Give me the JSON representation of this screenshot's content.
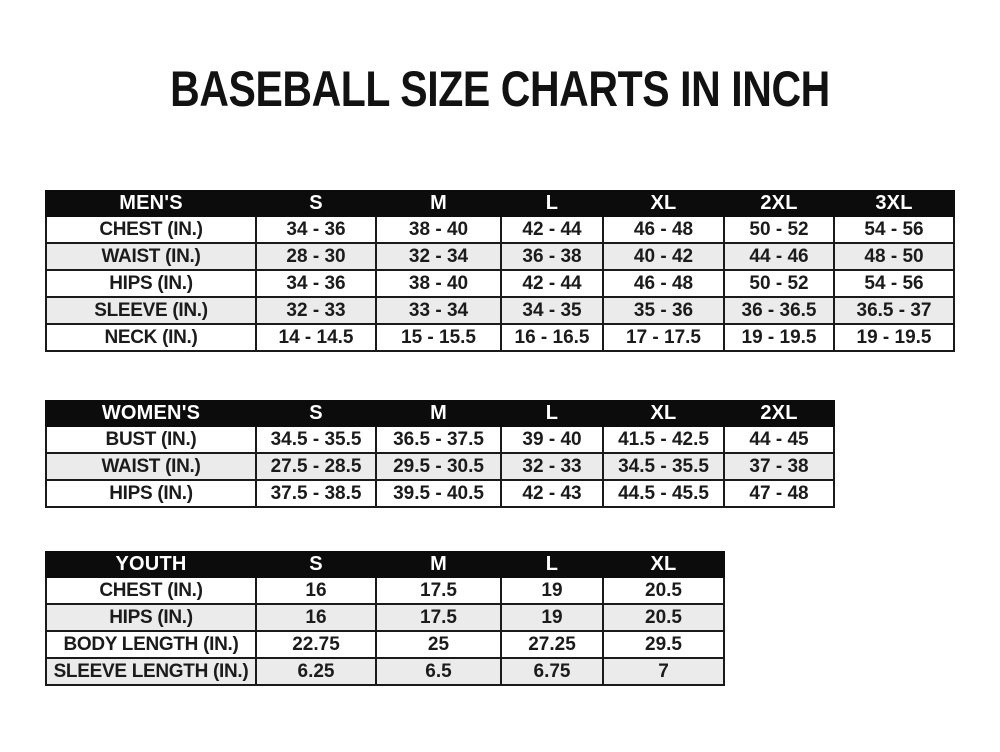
{
  "title": "BASEBALL SIZE CHARTS IN INCH",
  "colors": {
    "header_bg": "#0c0c0c",
    "header_text": "#ffffff",
    "row_bg": "#ffffff",
    "row_alt_bg": "#ebebeb",
    "border": "#1a1a1a",
    "text": "#1b1b1b",
    "page_bg": "#ffffff"
  },
  "chart_data": [
    {
      "type": "table",
      "name": "MEN'S",
      "columns": [
        "MEN'S",
        "S",
        "M",
        "L",
        "XL",
        "2XL",
        "3XL"
      ],
      "rows": [
        [
          "CHEST (IN.)",
          "34 - 36",
          "38 - 40",
          "42 - 44",
          "46 - 48",
          "50 - 52",
          "54 - 56"
        ],
        [
          "WAIST (IN.)",
          "28 - 30",
          "32 - 34",
          "36 - 38",
          "40 - 42",
          "44 - 46",
          "48 - 50"
        ],
        [
          "HIPS (IN.)",
          "34 - 36",
          "38 - 40",
          "42 - 44",
          "46 - 48",
          "50 - 52",
          "54 - 56"
        ],
        [
          "SLEEVE (IN.)",
          "32 - 33",
          "33 - 34",
          "34 - 35",
          "35 - 36",
          "36 - 36.5",
          "36.5 - 37"
        ],
        [
          "NECK (IN.)",
          "14 - 14.5",
          "15 - 15.5",
          "16 - 16.5",
          "17 - 17.5",
          "19 - 19.5",
          "19 - 19.5"
        ]
      ]
    },
    {
      "type": "table",
      "name": "WOMEN'S",
      "columns": [
        "WOMEN'S",
        "S",
        "M",
        "L",
        "XL",
        "2XL"
      ],
      "rows": [
        [
          "BUST (IN.)",
          "34.5 - 35.5",
          "36.5 - 37.5",
          "39 - 40",
          "41.5 - 42.5",
          "44 - 45"
        ],
        [
          "WAIST (IN.)",
          "27.5 - 28.5",
          "29.5 - 30.5",
          "32 - 33",
          "34.5 - 35.5",
          "37 - 38"
        ],
        [
          "HIPS (IN.)",
          "37.5 - 38.5",
          "39.5 - 40.5",
          "42 - 43",
          "44.5 - 45.5",
          "47 - 48"
        ]
      ]
    },
    {
      "type": "table",
      "name": "YOUTH",
      "columns": [
        "YOUTH",
        "S",
        "M",
        "L",
        "XL"
      ],
      "rows": [
        [
          "CHEST (IN.)",
          "16",
          "17.5",
          "19",
          "20.5"
        ],
        [
          "HIPS (IN.)",
          "16",
          "17.5",
          "19",
          "20.5"
        ],
        [
          "BODY LENGTH (IN.)",
          "22.75",
          "25",
          "27.25",
          "29.5"
        ],
        [
          "SLEEVE LENGTH (IN.)",
          "6.25",
          "6.5",
          "6.75",
          "7"
        ]
      ]
    }
  ]
}
